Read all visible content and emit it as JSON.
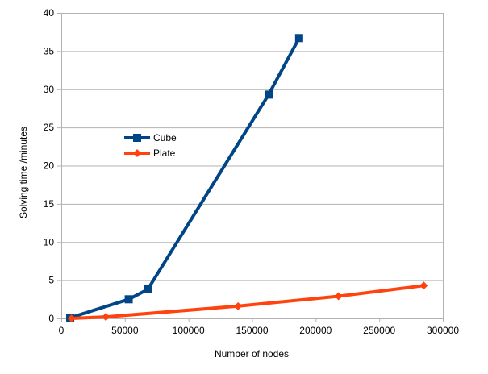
{
  "chart_data": {
    "type": "line",
    "xlabel": "Number of nodes",
    "ylabel": "Solving time /minutes",
    "xlim": [
      0,
      300000
    ],
    "ylim": [
      0,
      40
    ],
    "x_ticks": [
      0,
      50000,
      100000,
      150000,
      200000,
      250000,
      300000
    ],
    "y_ticks": [
      0,
      5,
      10,
      15,
      20,
      25,
      30,
      35,
      40
    ],
    "grid": "horizontal",
    "legend_position": "upper-left-inside",
    "series": [
      {
        "name": "Cube",
        "color": "#004586",
        "marker": "square",
        "points": [
          [
            7000,
            0.1
          ],
          [
            53000,
            2.5
          ],
          [
            68000,
            3.8
          ],
          [
            163000,
            29.3
          ],
          [
            187000,
            36.7
          ]
        ]
      },
      {
        "name": "Plate",
        "color": "#ff420e",
        "marker": "diamond",
        "points": [
          [
            8000,
            0.0
          ],
          [
            35000,
            0.2
          ],
          [
            139000,
            1.6
          ],
          [
            218000,
            2.9
          ],
          [
            285000,
            4.3
          ]
        ]
      }
    ]
  }
}
